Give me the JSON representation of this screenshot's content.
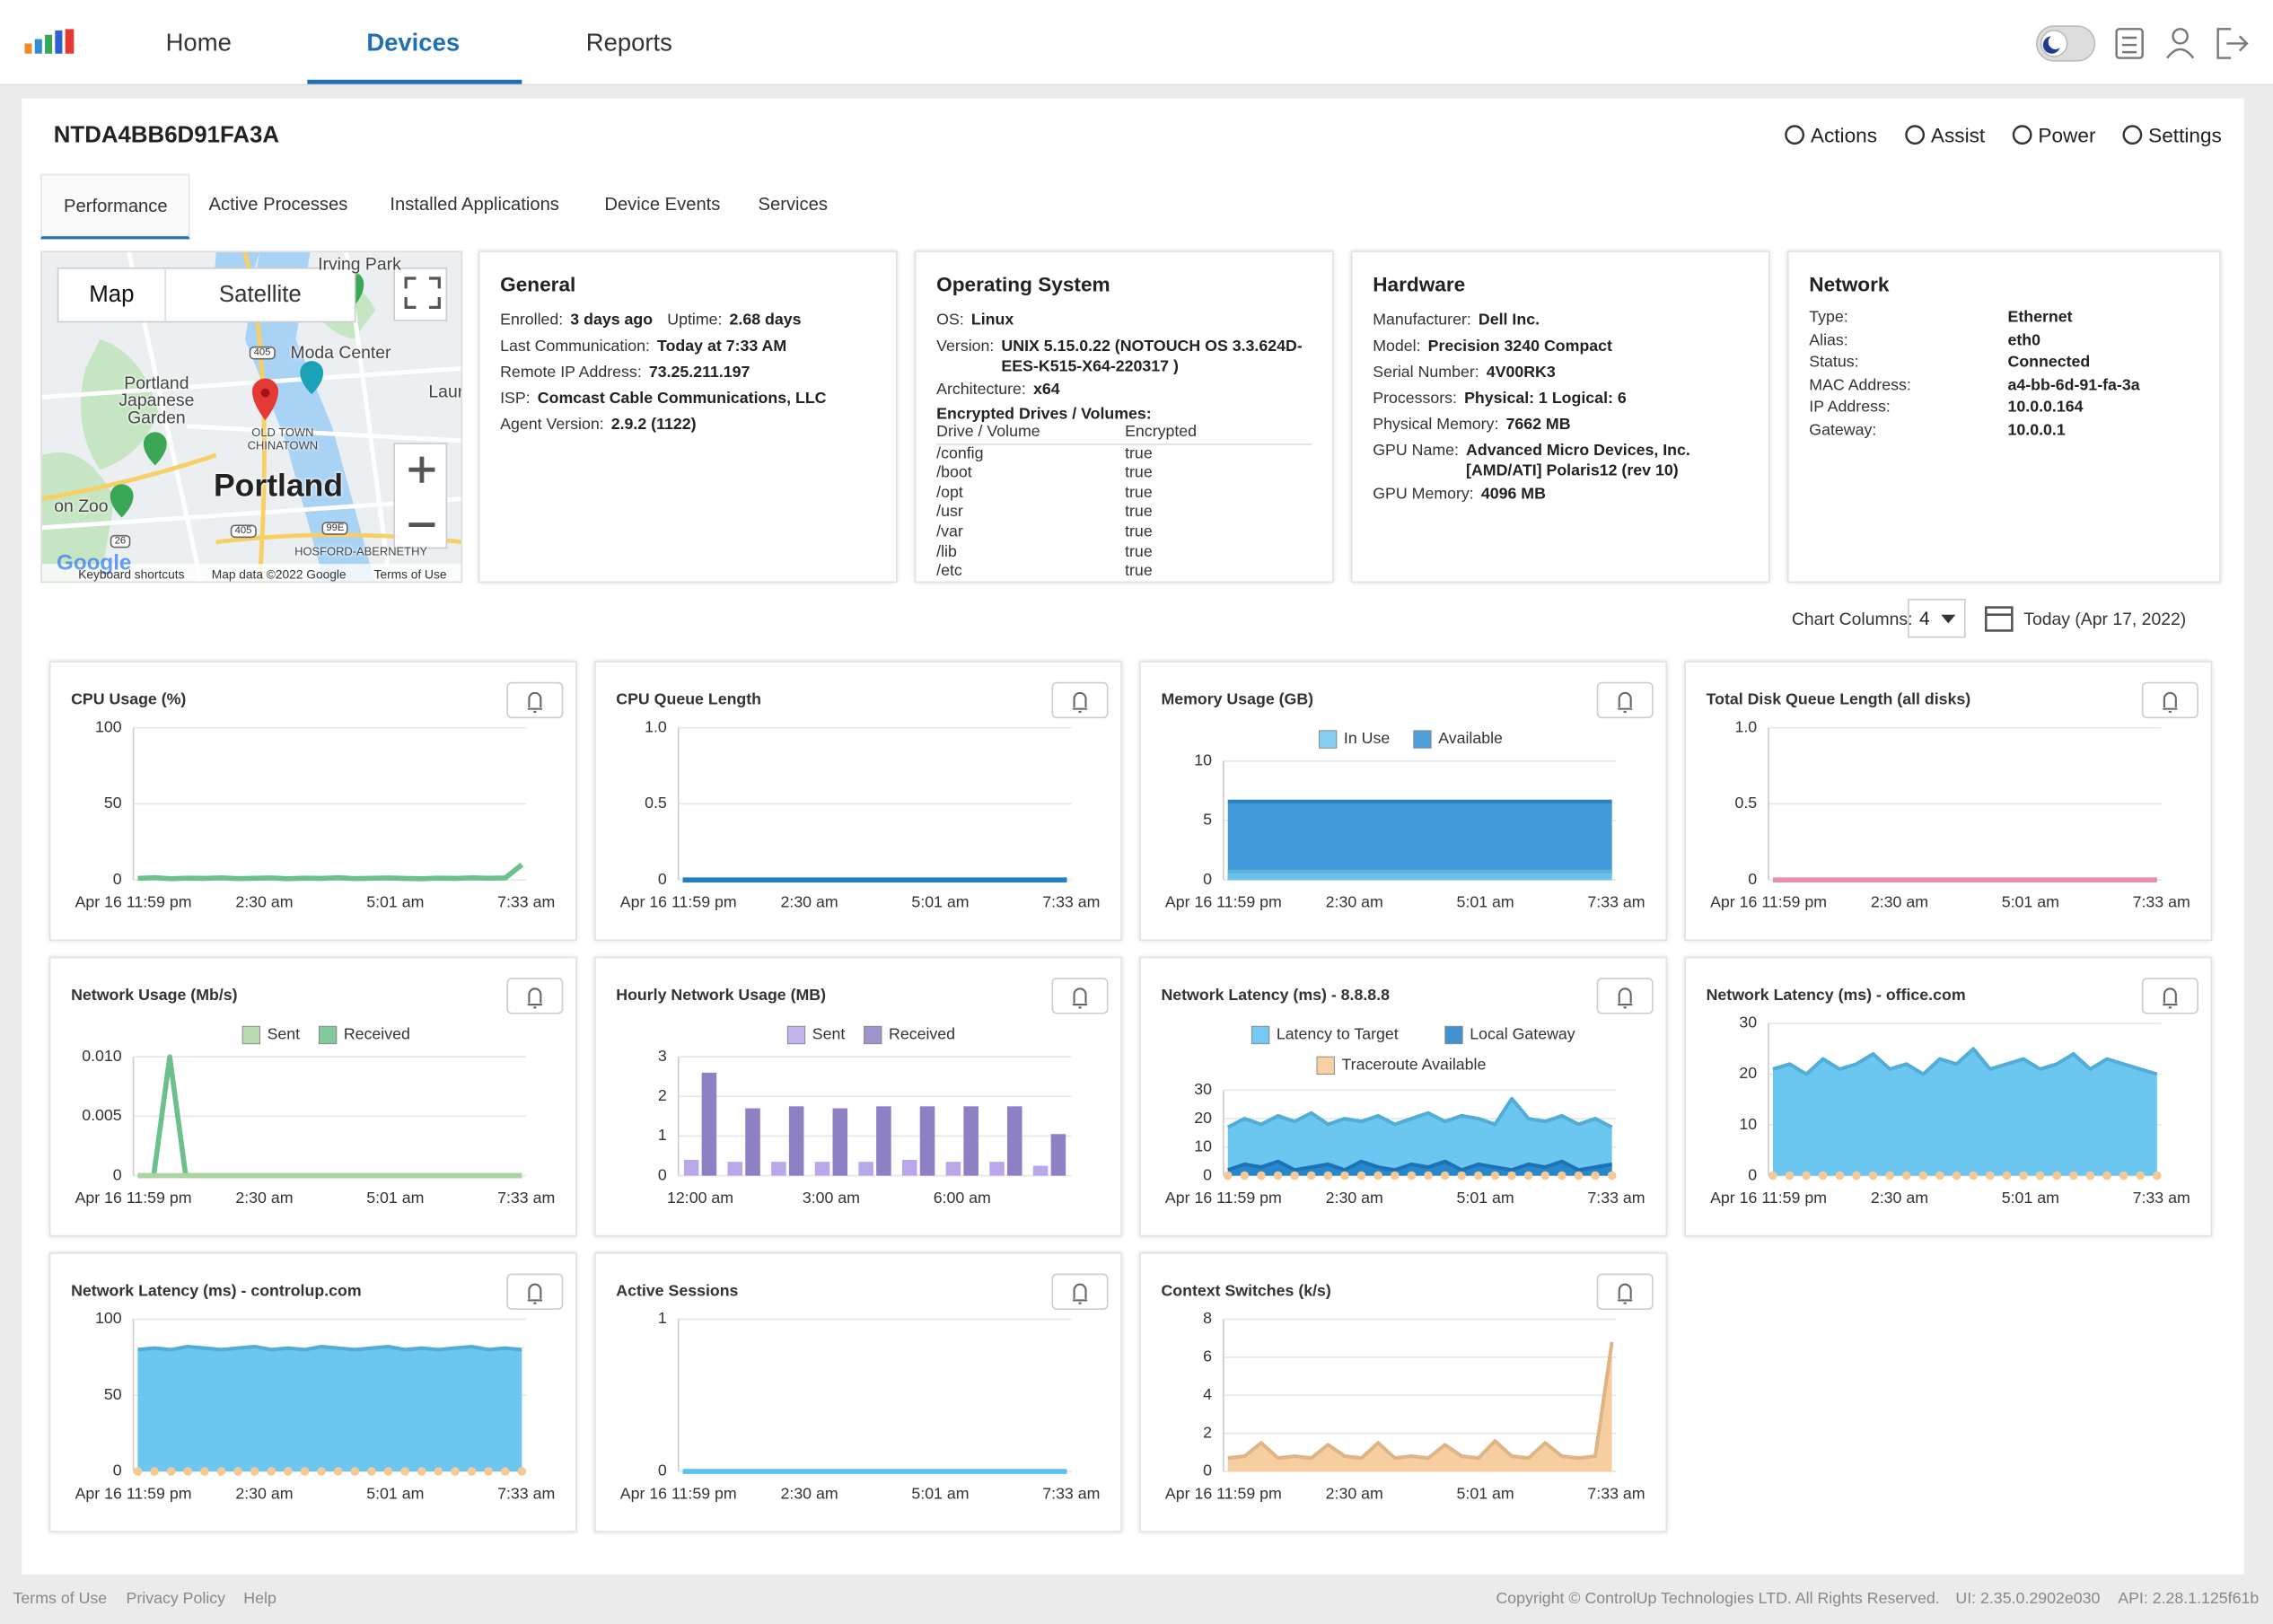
{
  "nav": {
    "tabs": [
      "Home",
      "Devices",
      "Reports"
    ],
    "active": 1
  },
  "device": {
    "name": "NTDA4BB6D91FA3A",
    "actions": [
      "Actions",
      "Assist",
      "Power",
      "Settings"
    ]
  },
  "subtabs": {
    "items": [
      "Performance",
      "Active Processes",
      "Installed Applications",
      "Device Events",
      "Services"
    ],
    "active": 0
  },
  "map": {
    "controls": [
      "Map",
      "Satellite"
    ],
    "places": [
      "Irving Park",
      "Moda Center",
      "Portland Japanese Garden",
      "OLD TOWN CHINATOWN",
      "Portland",
      "on Zoo",
      "HOSFORD-ABERNETHY",
      "Laure"
    ],
    "shields": [
      "405",
      "405",
      "26",
      "99E"
    ],
    "logo": "Google",
    "footer": [
      "Keyboard shortcuts",
      "Map data ©2022 Google",
      "Terms of Use"
    ]
  },
  "general": {
    "title": "General",
    "rows": [
      [
        [
          "Enrolled:",
          "3 days ago"
        ],
        [
          "Uptime:",
          "2.68 days"
        ]
      ],
      [
        [
          "Last Communication:",
          "Today at 7:33 AM"
        ]
      ],
      [
        [
          "Remote IP Address:",
          "73.25.211.197"
        ]
      ],
      [
        [
          "ISP:",
          "Comcast Cable Communications, LLC"
        ]
      ],
      [
        [
          "Agent Version:",
          "2.9.2 (1122)"
        ]
      ]
    ]
  },
  "os": {
    "title": "Operating System",
    "rows": [
      [
        "OS:",
        "Linux"
      ],
      [
        "Version:",
        "UNIX 5.15.0.22 (NOTOUCH OS 3.3.624D-EES-K515-X64-220317 )"
      ],
      [
        "Architecture:",
        "x64"
      ]
    ],
    "drives_title": "Encrypted Drives / Volumes:",
    "drives_header": [
      "Drive / Volume",
      "Encrypted"
    ],
    "drives": [
      [
        "/config",
        "true"
      ],
      [
        "/boot",
        "true"
      ],
      [
        "/opt",
        "true"
      ],
      [
        "/usr",
        "true"
      ],
      [
        "/var",
        "true"
      ],
      [
        "/lib",
        "true"
      ],
      [
        "/etc",
        "true"
      ]
    ]
  },
  "hardware": {
    "title": "Hardware",
    "rows": [
      [
        "Manufacturer:",
        "Dell Inc."
      ],
      [
        "Model:",
        "Precision 3240 Compact"
      ],
      [
        "Serial Number:",
        "4V00RK3"
      ],
      [
        "Processors:",
        "Physical: 1  Logical: 6"
      ],
      [
        "Physical Memory:",
        "7662 MB"
      ],
      [
        "GPU Name:",
        "Advanced Micro Devices, Inc. [AMD/ATI] Polaris12 (rev 10)"
      ],
      [
        "GPU Memory:",
        "4096 MB"
      ]
    ]
  },
  "network": {
    "title": "Network",
    "rows": [
      [
        "Type:",
        "Ethernet"
      ],
      [
        "Alias:",
        "eth0"
      ],
      [
        "Status:",
        "Connected"
      ],
      [
        "MAC Address:",
        "a4-bb-6d-91-fa-3a"
      ],
      [
        "IP Address:",
        "10.0.0.164"
      ],
      [
        "Gateway:",
        "10.0.0.1"
      ]
    ]
  },
  "controls": {
    "columns_label": "Chart Columns:",
    "columns": 4,
    "date": "Today (Apr 17, 2022)"
  },
  "chart_data": [
    {
      "type": "line",
      "title": "CPU Usage (%)",
      "ylim": [
        0,
        100
      ],
      "yticks": [
        0,
        50,
        100
      ],
      "grid": true,
      "xlabels": [
        "Apr 16 11:59 pm",
        "2:30 am",
        "5:01 am",
        "7:33 am"
      ],
      "series": [
        {
          "color": "#6cc08b",
          "values": [
            1,
            1.5,
            0.8,
            1.2,
            1,
            1.4,
            0.9,
            1.1,
            1.3,
            0.8,
            1.2,
            1,
            1.5,
            0.9,
            1.1,
            1.3,
            1,
            0.8,
            1.2,
            1,
            1.4,
            1.1,
            1.3,
            10
          ]
        }
      ]
    },
    {
      "type": "line",
      "title": "CPU Queue Length",
      "ylim": [
        0,
        1
      ],
      "yticks": [
        0,
        0.5,
        {
          "value": 1,
          "label": "1.0"
        }
      ],
      "grid": true,
      "xlabels": [
        "Apr 16 11:59 pm",
        "2:30 am",
        "5:01 am",
        "7:33 am"
      ],
      "series": [
        {
          "color": "#1f7fc8",
          "values": [
            0,
            0,
            0,
            0,
            0,
            0,
            0,
            0,
            0,
            0,
            0,
            0
          ]
        }
      ]
    },
    {
      "type": "area",
      "title": "Memory Usage (GB)",
      "ylim": [
        0,
        10
      ],
      "yticks": [
        0,
        5,
        10
      ],
      "grid": true,
      "xlabels": [
        "Apr 16 11:59 pm",
        "2:30 am",
        "5:01 am",
        "7:33 am"
      ],
      "series": [
        {
          "name": "In Use",
          "color": "#6ec6f0",
          "values": [
            0.7,
            0.7,
            0.7,
            0.7,
            0.7,
            0.7,
            0.7,
            0.7,
            0.7,
            0.7,
            0.7,
            0.7
          ]
        },
        {
          "name": "Available",
          "color": "#2f8fd6",
          "values": [
            6.6,
            6.6,
            6.6,
            6.6,
            6.6,
            6.6,
            6.6,
            6.6,
            6.6,
            6.6,
            6.6,
            6.6
          ]
        }
      ]
    },
    {
      "type": "line",
      "title": "Total Disk Queue Length (all disks)",
      "ylim": [
        0,
        1
      ],
      "yticks": [
        0,
        0.5,
        {
          "value": 1,
          "label": "1.0"
        }
      ],
      "grid": true,
      "xlabels": [
        "Apr 16 11:59 pm",
        "2:30 am",
        "5:01 am",
        "7:33 am"
      ],
      "series": [
        {
          "color": "#e58fa8",
          "values": [
            0,
            0,
            0,
            0,
            0,
            0,
            0,
            0,
            0,
            0,
            0,
            0
          ]
        }
      ]
    },
    {
      "type": "line",
      "title": "Network Usage (Mb/s)",
      "ylim": [
        0,
        0.01
      ],
      "yticks": [
        0,
        {
          "value": 0.005,
          "label": "0.005"
        },
        {
          "value": 0.01,
          "label": "0.010"
        }
      ],
      "grid": true,
      "xlabels": [
        "Apr 16 11:59 pm",
        "2:30 am",
        "5:01 am",
        "7:33 am"
      ],
      "series": [
        {
          "name": "Sent",
          "color": "#a8d5a0",
          "values": [
            0,
            0,
            0,
            0,
            0,
            0,
            0,
            0,
            0,
            0,
            0,
            0,
            0,
            0,
            0,
            0,
            0,
            0,
            0,
            0,
            0,
            0,
            0,
            0,
            0
          ]
        },
        {
          "name": "Received",
          "color": "#6cc08b",
          "values": [
            0,
            0,
            0.01,
            0,
            0,
            0,
            0,
            0,
            0,
            0,
            0,
            0,
            0,
            0,
            0,
            0,
            0,
            0,
            0,
            0,
            0,
            0,
            0,
            0,
            0
          ]
        }
      ]
    },
    {
      "type": "bar",
      "title": "Hourly Network Usage (MB)",
      "ylim": [
        0,
        3
      ],
      "yticks": [
        0,
        1,
        2,
        3
      ],
      "grid": true,
      "categories": [
        "12:00 am",
        null,
        null,
        "3:00 am",
        null,
        null,
        "6:00 am",
        null,
        null
      ],
      "series": [
        {
          "name": "Sent",
          "color": "#b9a7ea",
          "values": [
            0.4,
            0.35,
            0.35,
            0.35,
            0.35,
            0.4,
            0.35,
            0.35,
            0.25
          ]
        },
        {
          "name": "Received",
          "color": "#8f7fc4",
          "values": [
            2.6,
            1.7,
            1.75,
            1.7,
            1.75,
            1.75,
            1.75,
            1.75,
            1.05
          ]
        }
      ]
    },
    {
      "type": "area",
      "title": "Network Latency (ms) - 8.8.8.8",
      "ylim": [
        0,
        30
      ],
      "yticks": [
        0,
        10,
        20,
        30
      ],
      "grid": true,
      "xlabels": [
        "Apr 16 11:59 pm",
        "2:30 am",
        "5:01 am",
        "7:33 am"
      ],
      "series": [
        {
          "name": "Latency to Target",
          "color": "#5bc0ee",
          "values": [
            17,
            20,
            18,
            21,
            19,
            22,
            18,
            20,
            19,
            21,
            18,
            20,
            22,
            19,
            21,
            20,
            18,
            27,
            20,
            19,
            21,
            18,
            20,
            17
          ]
        },
        {
          "name": "Local Gateway",
          "color": "#1f7fc8",
          "values": [
            2,
            4,
            3,
            5,
            2,
            3,
            4,
            2,
            5,
            3,
            2,
            4,
            3,
            5,
            2,
            4,
            3,
            2,
            4,
            3,
            5,
            2,
            3,
            4
          ]
        },
        {
          "name": "Traceroute Available",
          "color": "#f5c996",
          "markers": true,
          "values": [
            0,
            0,
            0,
            0,
            0,
            0,
            0,
            0,
            0,
            0,
            0,
            0,
            0,
            0,
            0,
            0,
            0,
            0,
            0,
            0,
            0,
            0,
            0,
            0
          ]
        }
      ]
    },
    {
      "type": "area",
      "title": "Network Latency (ms) - office.com",
      "ylim": [
        0,
        30
      ],
      "yticks": [
        0,
        10,
        20,
        30
      ],
      "grid": true,
      "xlabels": [
        "Apr 16 11:59 pm",
        "2:30 am",
        "5:01 am",
        "7:33 am"
      ],
      "series": [
        {
          "color": "#5bc0ee",
          "values": [
            21,
            22,
            20,
            23,
            21,
            22,
            24,
            21,
            22,
            20,
            23,
            22,
            25,
            21,
            22,
            23,
            21,
            22,
            24,
            21,
            23,
            22,
            21,
            20
          ]
        },
        {
          "color": "#f5c996",
          "markers": true,
          "values": [
            0,
            0,
            0,
            0,
            0,
            0,
            0,
            0,
            0,
            0,
            0,
            0,
            0,
            0,
            0,
            0,
            0,
            0,
            0,
            0,
            0,
            0,
            0,
            0
          ]
        }
      ]
    },
    {
      "type": "area",
      "title": "Network Latency (ms) - controlup.com",
      "ylim": [
        0,
        100
      ],
      "yticks": [
        0,
        50,
        100
      ],
      "grid": true,
      "xlabels": [
        "Apr 16 11:59 pm",
        "2:30 am",
        "5:01 am",
        "7:33 am"
      ],
      "series": [
        {
          "color": "#5bc0ee",
          "values": [
            80,
            81,
            80,
            82,
            81,
            80,
            81,
            82,
            80,
            81,
            80,
            82,
            81,
            80,
            81,
            82,
            80,
            81,
            80,
            81,
            82,
            80,
            81,
            80
          ]
        },
        {
          "color": "#f5c996",
          "markers": true,
          "values": [
            0,
            0,
            0,
            0,
            0,
            0,
            0,
            0,
            0,
            0,
            0,
            0,
            0,
            0,
            0,
            0,
            0,
            0,
            0,
            0,
            0,
            0,
            0,
            0
          ]
        }
      ]
    },
    {
      "type": "line",
      "title": "Active Sessions",
      "ylim": [
        0,
        1
      ],
      "yticks": [
        0,
        1
      ],
      "grid": true,
      "xlabels": [
        "Apr 16 11:59 pm",
        "2:30 am",
        "5:01 am",
        "7:33 am"
      ],
      "series": [
        {
          "color": "#5bc0ee",
          "values": [
            0,
            0,
            0,
            0,
            0,
            0,
            0,
            0,
            0,
            0,
            0,
            0
          ]
        }
      ]
    },
    {
      "type": "area",
      "title": "Context Switches (k/s)",
      "ylim": [
        0,
        8
      ],
      "yticks": [
        0,
        2,
        4,
        6,
        8
      ],
      "grid": true,
      "xlabels": [
        "Apr 16 11:59 pm",
        "2:30 am",
        "5:01 am",
        "7:33 am"
      ],
      "series": [
        {
          "color": "#f5c996",
          "values": [
            0.7,
            0.8,
            1.5,
            0.7,
            0.8,
            0.7,
            1.4,
            0.8,
            0.7,
            1.5,
            0.7,
            0.8,
            0.7,
            1.4,
            0.8,
            0.7,
            1.6,
            0.8,
            0.7,
            1.5,
            0.8,
            0.7,
            0.8,
            6.8
          ]
        }
      ]
    }
  ],
  "footer": {
    "links": [
      "Terms of Use",
      "Privacy Policy",
      "Help"
    ],
    "copyright": "Copyright © ControlUp Technologies LTD. All Rights Reserved.",
    "ui": "UI: 2.35.0.2902e030",
    "api": "API: 2.28.1.125f61b"
  }
}
